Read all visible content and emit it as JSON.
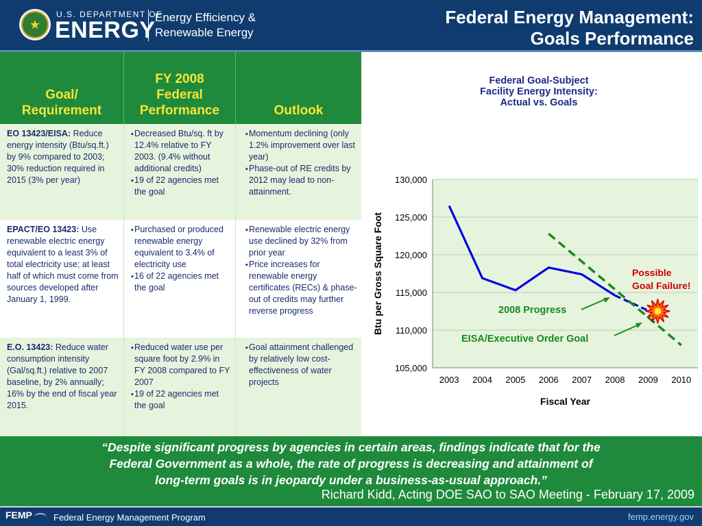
{
  "header": {
    "dept_line": "U.S. DEPARTMENT OF",
    "energy_word": "ENERGY",
    "office_line1": "Energy Efficiency &",
    "office_line2": "Renewable Energy",
    "title_line1": "Federal Energy Management:",
    "title_line2": "Goals Performance"
  },
  "table": {
    "headers": [
      [
        "Goal/",
        "Requirement"
      ],
      [
        "FY 2008",
        "Federal",
        "Performance"
      ],
      [
        "Outlook"
      ]
    ],
    "rows": [
      {
        "goal_lead": "EO 13423/EISA:",
        "goal_text": " Reduce energy intensity (Btu/sq.ft.) by 9% compared to 2003; 30% reduction required in 2015 (3% per year)",
        "performance": [
          "Decreased Btu/sq. ft by 12.4% relative to FY 2003.  (9.4% without additional credits)",
          "19 of 22 agencies met the goal"
        ],
        "outlook": [
          "Momentum declining (only 1.2% improvement over last year)",
          "Phase-out of RE credits by 2012 may lead to non-attainment."
        ]
      },
      {
        "goal_lead": "EPACT/EO 13423:",
        "goal_text": " Use renewable electric energy equivalent to a least 3% of total electricity use; at least half of which must come from sources developed after January 1, 1999.",
        "performance": [
          "Purchased or produced renewable energy equivalent to 3.4% of electricity use",
          "16 of 22 agencies  met the goal"
        ],
        "outlook": [
          "Renewable electric energy use declined by 32% from prior year",
          "Price increases for renewable energy certificates (RECs) & phase-out of credits may further  reverse progress"
        ]
      },
      {
        "goal_lead": "E.O. 13423:",
        "goal_text": "  Reduce water consumption intensity (Gal/sq.ft.) relative to 2007 baseline, by 2% annually; 16% by the end of fiscal year 2015.",
        "performance": [
          "Reduced water use per square foot by 2.9% in FY 2008 compared to FY 2007",
          "19 of 22 agencies met the goal"
        ],
        "outlook": [
          "Goal attainment challenged by relatively low cost-effectiveness of water projects"
        ]
      }
    ]
  },
  "chart_data": {
    "type": "line",
    "title_lines": [
      "Federal Goal-Subject",
      "Facility Energy Intensity:",
      "Actual vs. Goals"
    ],
    "xlabel": "Fiscal Year",
    "ylabel": "Btu per Gross Square Foot",
    "categories": [
      "2003",
      "2004",
      "2005",
      "2006",
      "2007",
      "2008",
      "2009",
      "2010"
    ],
    "ylim": [
      105000,
      130000
    ],
    "yticks": [
      "105,000",
      "110,000",
      "115,000",
      "120,000",
      "125,000",
      "130,000"
    ],
    "grid": true,
    "series": [
      {
        "name": "2008 Progress",
        "style": "solid",
        "color": "#0000e0",
        "x": [
          "2003",
          "2004",
          "2005",
          "2006",
          "2007",
          "2008"
        ],
        "values": [
          126500,
          116900,
          115300,
          118300,
          117400,
          114600
        ]
      },
      {
        "name": "",
        "style": "dashed",
        "color": "#0000e0",
        "x": [
          "2008",
          "2009"
        ],
        "values": [
          114600,
          112600
        ]
      },
      {
        "name": "EISA/Executive Order Goal",
        "style": "dashed",
        "color": "#1a8a1a",
        "x": [
          "2006",
          "2010"
        ],
        "values": [
          122800,
          108000
        ]
      }
    ],
    "annotations": [
      {
        "text_lines": [
          "Possible",
          "Goal Failure!"
        ],
        "color": "#cc0000"
      },
      {
        "text": "2008 Progress",
        "color": "#1a8a1a"
      },
      {
        "text": "EISA/Executive Order Goal",
        "color": "#1a8a1a"
      }
    ],
    "plot_bg": "#e6f4de"
  },
  "banner": {
    "quote_line1": "Despite significant progress by agencies in certain areas, findings indicate that for the",
    "quote_line2": "Federal Government as a whole, the rate of progress is decreasing and attainment of",
    "quote_line3": "long-term goals is in jeopardy under a business-as-usual approach.",
    "attribution": "Richard Kidd, Acting DOE SAO to SAO Meeting - February 17, 2009"
  },
  "footer": {
    "logo": "FEMP",
    "program": "Federal Energy Management Program",
    "url": "femp.energy.gov"
  },
  "colors": {
    "navy": "#0f3b6e",
    "green": "#1f8a3c",
    "yellow": "#f7e43a",
    "blue_text": "#1a2a6c"
  }
}
